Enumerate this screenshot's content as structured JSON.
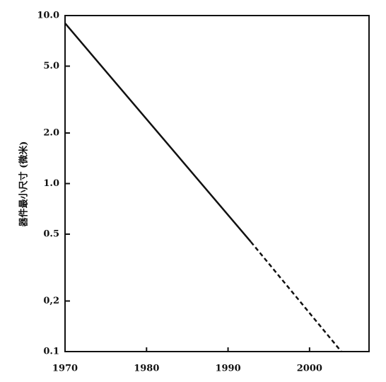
{
  "chart_data": {
    "type": "line",
    "y_label": "器件最小尺寸 (微米)",
    "log_y": true,
    "xlim": [
      1970,
      2007.3
    ],
    "xticks": [
      1970,
      1980,
      1990,
      2000
    ],
    "ylim": [
      0.1,
      10
    ],
    "yticks": [
      {
        "value": 0.1,
        "label": "0.1"
      },
      {
        "value": 0.2,
        "label": "0,2"
      },
      0.5,
      {
        "value": 1,
        "label": "1.0"
      },
      {
        "value": 2,
        "label": "2.0"
      },
      {
        "value": 5,
        "label": "5.0"
      },
      {
        "value": 10,
        "label": "10.0"
      }
    ],
    "series": [
      {
        "style": "solid",
        "color": "#111111",
        "x": [
          1970,
          1992.8
        ],
        "values": [
          9,
          0.45
        ]
      },
      {
        "style": "dashed",
        "color": "#111111",
        "x": [
          1992.8,
          2003.9
        ],
        "values": [
          0.45,
          0.1
        ]
      }
    ]
  }
}
